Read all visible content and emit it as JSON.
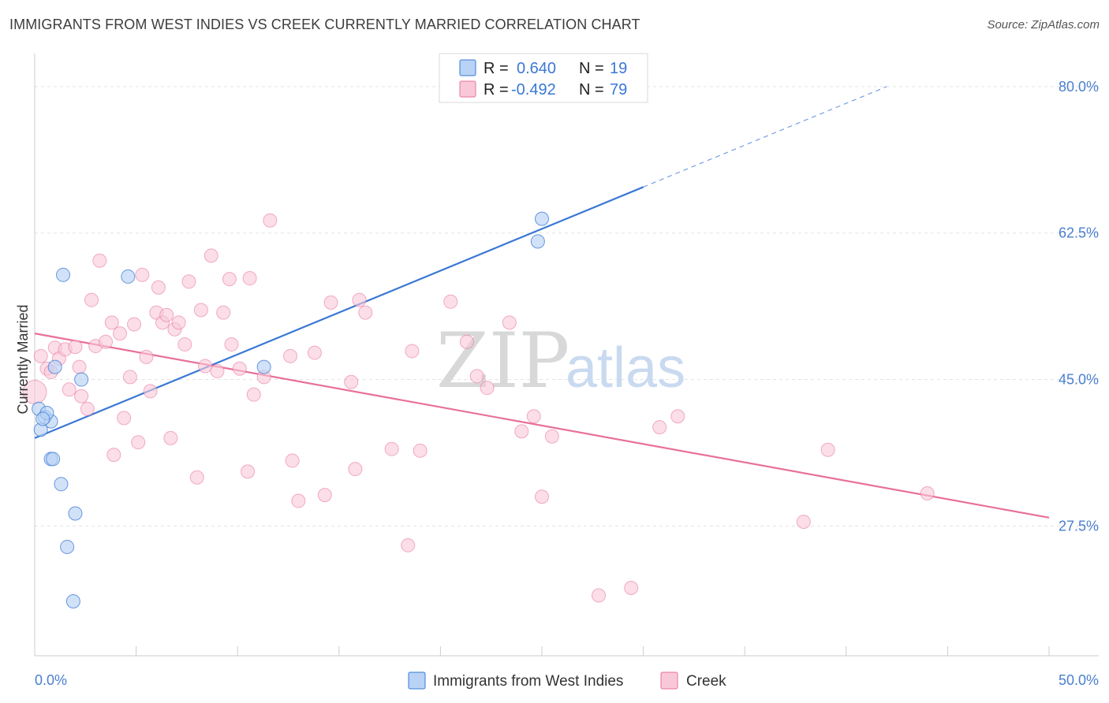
{
  "title": "IMMIGRANTS FROM WEST INDIES VS CREEK CURRENTLY MARRIED CORRELATION CHART",
  "source": "Source: ZipAtlas.com",
  "watermark": {
    "zip": "ZIP",
    "atlas": "atlas"
  },
  "colors": {
    "blue": "#3a78d4",
    "blue_fill": "#b8d3f5",
    "pink": "#e8709a",
    "pink_fill": "#f9c8d8"
  },
  "legend": {
    "rows": [
      {
        "r_label": "R =",
        "r_value": "0.640",
        "n_label": "N =",
        "n_value": "19",
        "series": "blue"
      },
      {
        "r_label": "R =",
        "r_value": "-0.492",
        "n_label": "N =",
        "n_value": "79",
        "series": "pink"
      }
    ]
  },
  "chart_data": {
    "type": "scatter",
    "xlabel": "",
    "ylabel": "Currently Married",
    "xlim": [
      0,
      50
    ],
    "ylim": [
      12,
      83
    ],
    "y_ticks": [
      {
        "value": 27.5,
        "label": "27.5%"
      },
      {
        "value": 45.0,
        "label": "45.0%"
      },
      {
        "value": 62.5,
        "label": "62.5%"
      },
      {
        "value": 80.0,
        "label": "80.0%"
      }
    ],
    "x_tick_labels": {
      "min": "0.0%",
      "max": "50.0%"
    },
    "grid": true,
    "legend_position": "top-center",
    "series": [
      {
        "name": "Immigrants from West Indies",
        "color": "#3a78d4",
        "points": [
          [
            0.2,
            41.5
          ],
          [
            0.3,
            39.0
          ],
          [
            0.5,
            40.5
          ],
          [
            0.8,
            40.0
          ],
          [
            0.8,
            35.5
          ],
          [
            0.9,
            35.5
          ],
          [
            1.0,
            46.5
          ],
          [
            1.3,
            32.5
          ],
          [
            1.4,
            57.5
          ],
          [
            1.6,
            25.0
          ],
          [
            1.9,
            18.5
          ],
          [
            2.0,
            29.0
          ],
          [
            2.3,
            45.0
          ],
          [
            4.6,
            57.3
          ],
          [
            11.3,
            46.5
          ],
          [
            24.8,
            61.5
          ],
          [
            25.0,
            64.2
          ],
          [
            0.6,
            41.0
          ],
          [
            0.4,
            40.3
          ]
        ],
        "trend": {
          "x0": 0.0,
          "y0": 38.0,
          "x1": 30.0,
          "y1": 68.0,
          "dash_to_x": 42.0,
          "dash_to_y": 80.0
        }
      },
      {
        "name": "Creek",
        "color": "#e8709a",
        "points": [
          [
            0.0,
            43.5
          ],
          [
            0.3,
            47.8
          ],
          [
            0.6,
            46.3
          ],
          [
            0.8,
            45.9
          ],
          [
            1.0,
            48.8
          ],
          [
            1.2,
            47.5
          ],
          [
            1.5,
            48.6
          ],
          [
            1.7,
            43.8
          ],
          [
            2.0,
            48.9
          ],
          [
            2.2,
            46.5
          ],
          [
            2.3,
            43.0
          ],
          [
            2.6,
            41.5
          ],
          [
            2.8,
            54.5
          ],
          [
            3.0,
            49.0
          ],
          [
            3.2,
            59.2
          ],
          [
            3.5,
            49.5
          ],
          [
            3.8,
            51.8
          ],
          [
            3.9,
            36.0
          ],
          [
            4.2,
            50.5
          ],
          [
            4.4,
            40.4
          ],
          [
            4.7,
            45.3
          ],
          [
            4.9,
            51.6
          ],
          [
            5.1,
            37.5
          ],
          [
            5.3,
            57.5
          ],
          [
            5.5,
            47.7
          ],
          [
            5.7,
            43.6
          ],
          [
            6.0,
            53.0
          ],
          [
            6.1,
            56.0
          ],
          [
            6.3,
            51.8
          ],
          [
            6.5,
            52.7
          ],
          [
            6.7,
            38.0
          ],
          [
            6.9,
            51.0
          ],
          [
            7.1,
            51.8
          ],
          [
            7.4,
            49.2
          ],
          [
            7.6,
            56.7
          ],
          [
            8.0,
            33.3
          ],
          [
            8.2,
            53.3
          ],
          [
            8.4,
            46.6
          ],
          [
            8.7,
            59.8
          ],
          [
            9.0,
            46.0
          ],
          [
            9.3,
            53.0
          ],
          [
            9.6,
            57.0
          ],
          [
            9.7,
            49.2
          ],
          [
            10.1,
            46.3
          ],
          [
            10.5,
            34.0
          ],
          [
            10.6,
            57.1
          ],
          [
            10.8,
            43.2
          ],
          [
            11.3,
            45.3
          ],
          [
            11.6,
            64.0
          ],
          [
            12.6,
            47.8
          ],
          [
            12.7,
            35.3
          ],
          [
            13.0,
            30.5
          ],
          [
            13.8,
            48.2
          ],
          [
            14.3,
            31.2
          ],
          [
            14.6,
            54.2
          ],
          [
            15.6,
            44.7
          ],
          [
            15.8,
            34.3
          ],
          [
            16.0,
            54.5
          ],
          [
            16.3,
            53.0
          ],
          [
            17.6,
            36.7
          ],
          [
            18.4,
            25.2
          ],
          [
            18.6,
            48.4
          ],
          [
            19.0,
            36.5
          ],
          [
            20.5,
            54.3
          ],
          [
            21.3,
            49.5
          ],
          [
            21.8,
            45.4
          ],
          [
            22.3,
            44.0
          ],
          [
            23.4,
            51.8
          ],
          [
            24.0,
            38.8
          ],
          [
            24.6,
            40.6
          ],
          [
            25.0,
            31.0
          ],
          [
            25.5,
            38.2
          ],
          [
            27.8,
            19.2
          ],
          [
            29.4,
            20.1
          ],
          [
            30.8,
            39.3
          ],
          [
            31.7,
            40.6
          ],
          [
            37.9,
            28.0
          ],
          [
            39.1,
            36.6
          ],
          [
            44.0,
            31.4
          ]
        ],
        "trend": {
          "x0": 0.0,
          "y0": 50.5,
          "x1": 50.0,
          "y1": 28.5
        }
      }
    ]
  }
}
